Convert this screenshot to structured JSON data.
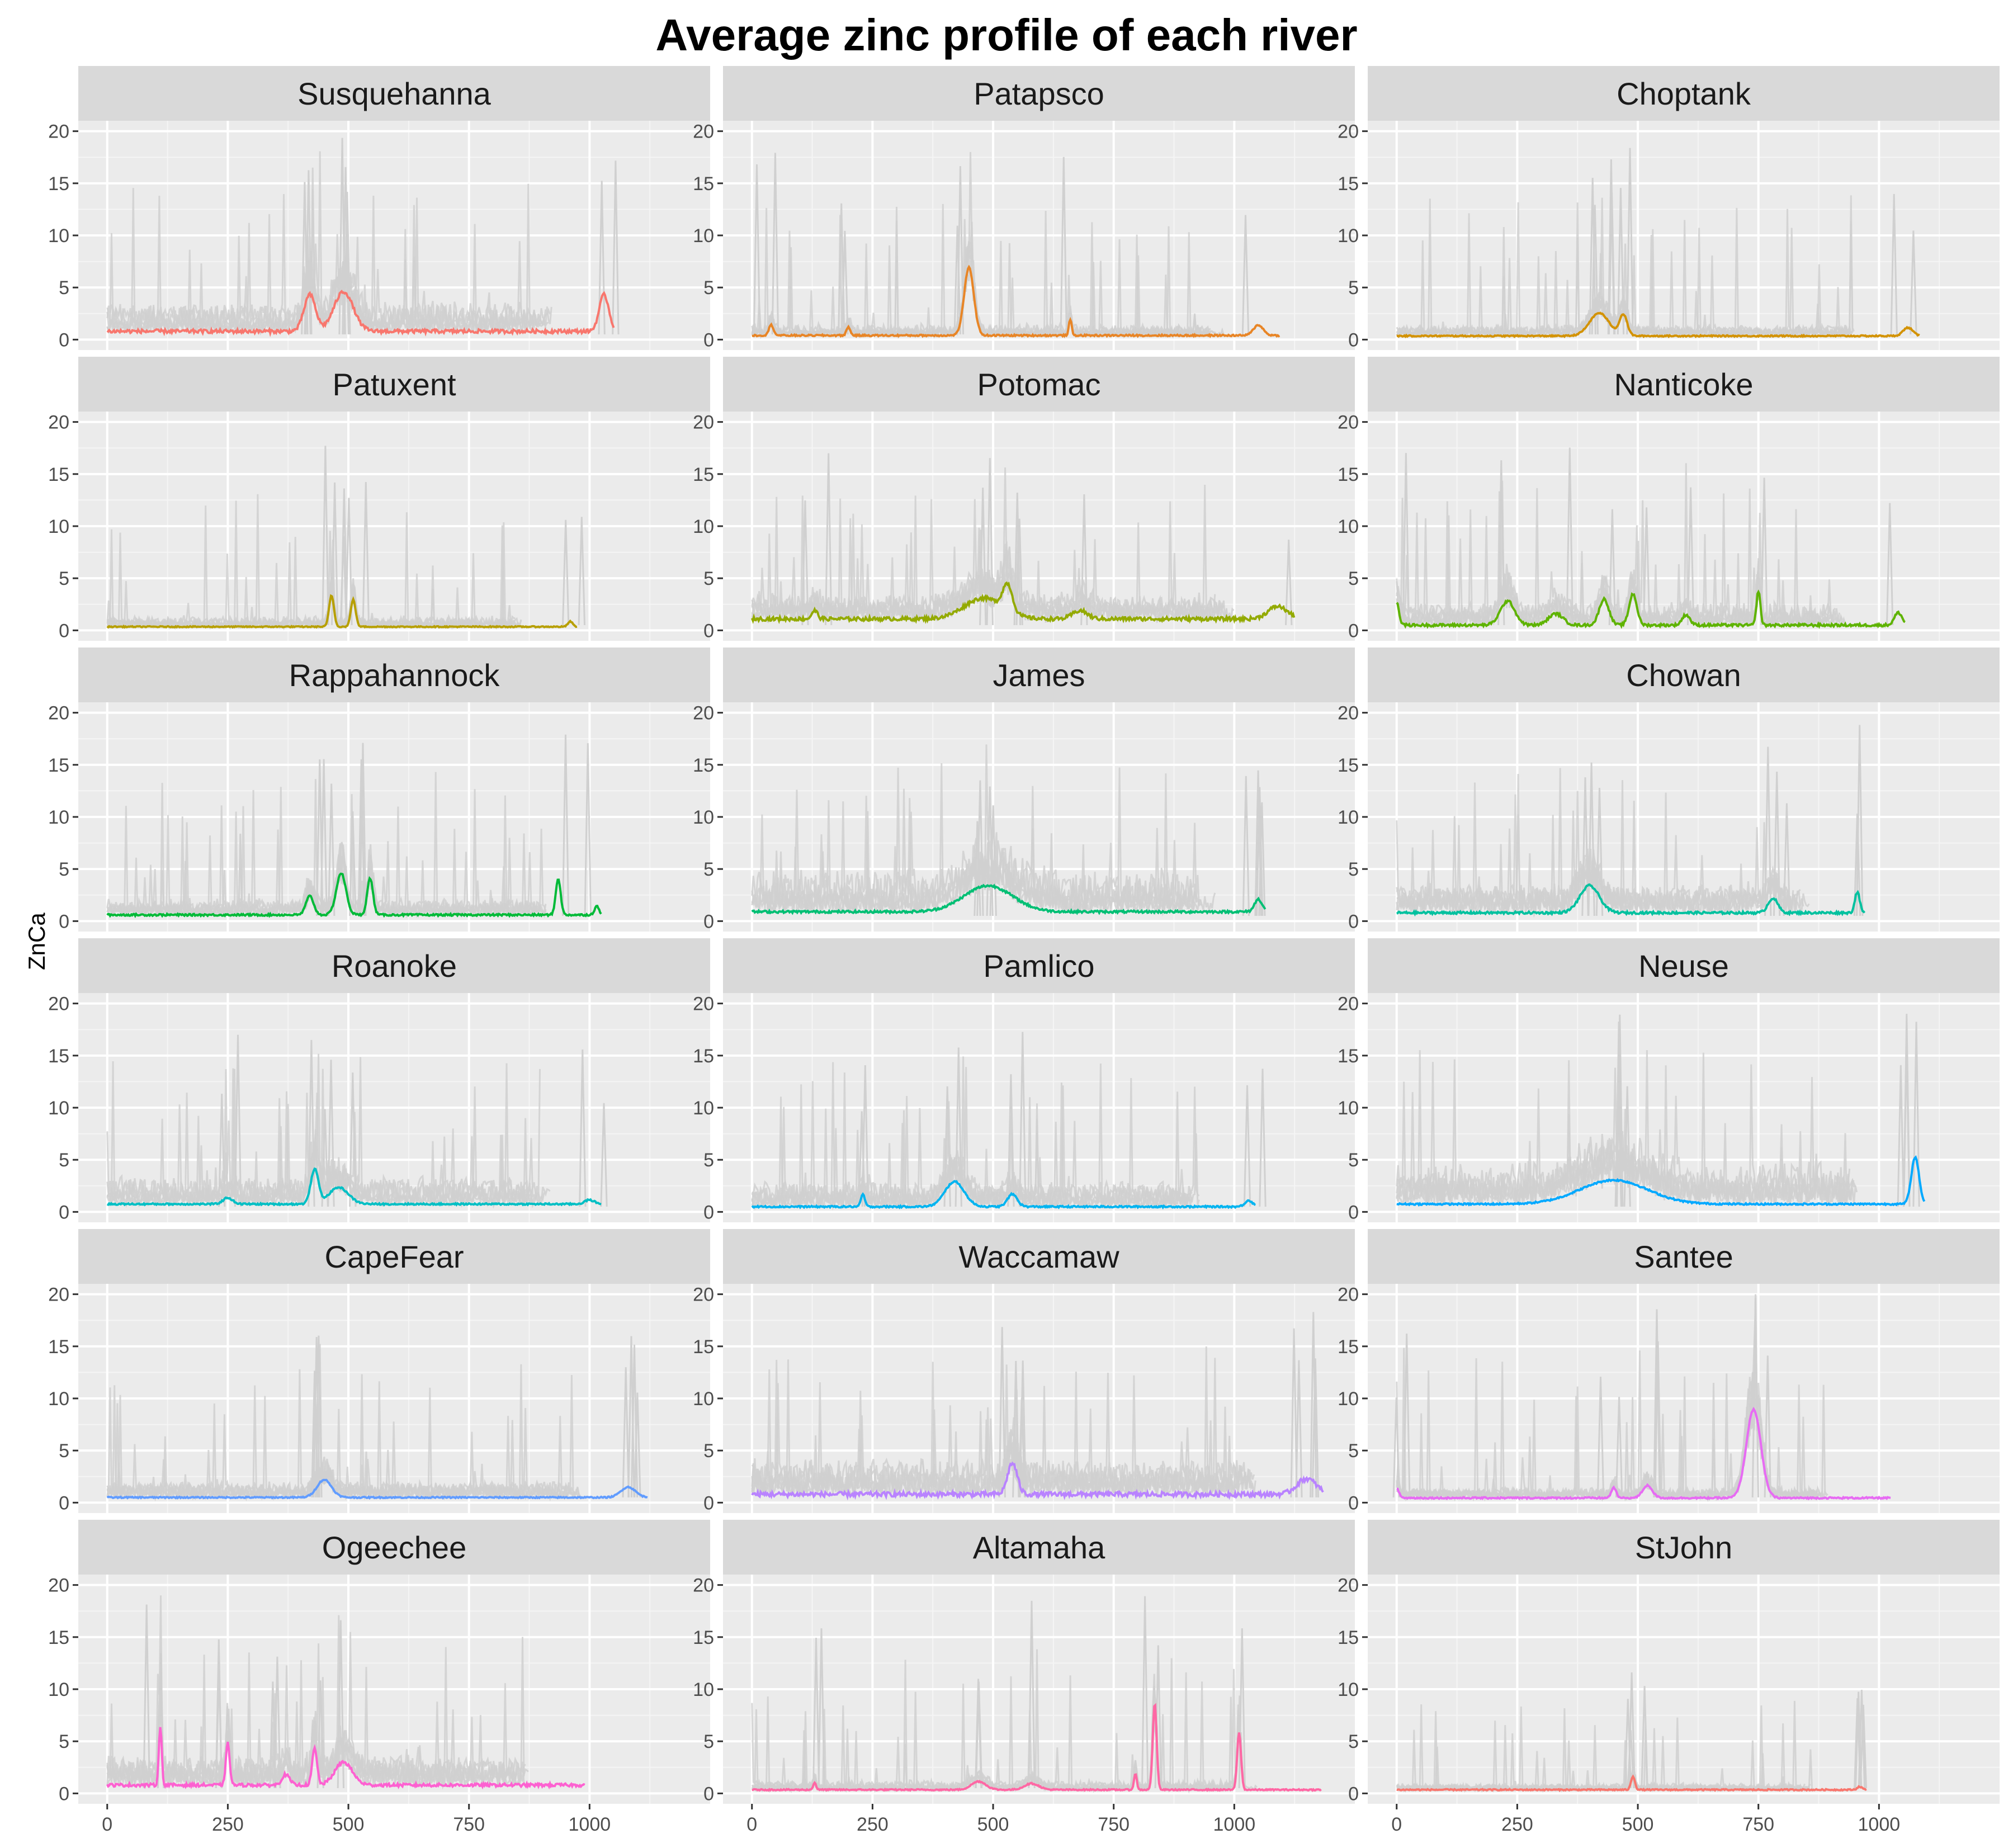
{
  "chart_data": {
    "type": "line",
    "title": "Average zinc profile of each river",
    "ylabel": "ZnCa",
    "xlabel": "",
    "xlim": [
      -60,
      1250
    ],
    "ylim": [
      -1,
      21
    ],
    "x_ticks": [
      0,
      250,
      500,
      750,
      1000
    ],
    "y_ticks": [
      0,
      5,
      10,
      15,
      20
    ],
    "grid": true,
    "legend": "none",
    "background_line_color": "#d0d0d0",
    "panels": [
      {
        "name": "Susquehanna",
        "color": "#F8766D",
        "xmax": 1050,
        "baseline": 0.8,
        "noise": 0.35,
        "bgnoise": 1.6,
        "bgmax": 20,
        "peaks": [
          [
            420,
            3.5,
            12
          ],
          [
            490,
            3.8,
            20
          ],
          [
            1030,
            3.5,
            10
          ]
        ]
      },
      {
        "name": "Patapsco",
        "color": "#E88526",
        "xmax": 1095,
        "baseline": 0.4,
        "noise": 0.15,
        "bgnoise": 0.6,
        "bgmax": 18,
        "peaks": [
          [
            40,
            1.0,
            5
          ],
          [
            200,
            0.8,
            4
          ],
          [
            450,
            6.5,
            10
          ],
          [
            660,
            1.5,
            3
          ],
          [
            1050,
            1.0,
            10
          ]
        ]
      },
      {
        "name": "Choptank",
        "color": "#D39200",
        "xmax": 1085,
        "baseline": 0.35,
        "noise": 0.12,
        "bgnoise": 0.6,
        "bgmax": 19,
        "peaks": [
          [
            420,
            2.2,
            20
          ],
          [
            470,
            2.0,
            8
          ],
          [
            1060,
            0.8,
            10
          ]
        ]
      },
      {
        "name": "Patuxent",
        "color": "#B79F00",
        "xmax": 975,
        "baseline": 0.35,
        "noise": 0.1,
        "bgnoise": 0.6,
        "bgmax": 18,
        "peaks": [
          [
            465,
            3.0,
            5
          ],
          [
            510,
            2.6,
            5
          ],
          [
            960,
            0.5,
            5
          ]
        ]
      },
      {
        "name": "Potomac",
        "color": "#93AA00",
        "xmax": 1125,
        "baseline": 1.1,
        "noise": 0.35,
        "bgnoise": 1.4,
        "bgmax": 17,
        "peaks": [
          [
            130,
            0.8,
            6
          ],
          [
            480,
            2.0,
            40
          ],
          [
            530,
            2.5,
            10
          ],
          [
            680,
            0.8,
            15
          ],
          [
            1090,
            1.2,
            20
          ]
        ]
      },
      {
        "name": "Nanticoke",
        "color": "#5EB300",
        "xmax": 1055,
        "baseline": 0.5,
        "noise": 0.25,
        "bgnoise": 1.2,
        "bgmax": 20,
        "peaks": [
          [
            0,
            2.2,
            5
          ],
          [
            230,
            2.3,
            15
          ],
          [
            330,
            1.1,
            15
          ],
          [
            430,
            2.5,
            10
          ],
          [
            490,
            3.0,
            8
          ],
          [
            600,
            1.0,
            8
          ],
          [
            750,
            3.3,
            4
          ],
          [
            1040,
            1.2,
            8
          ]
        ]
      },
      {
        "name": "Rappahannock",
        "color": "#00BA38",
        "xmax": 1025,
        "baseline": 0.6,
        "noise": 0.18,
        "bgnoise": 0.9,
        "bgmax": 19,
        "peaks": [
          [
            420,
            1.8,
            8
          ],
          [
            485,
            4.0,
            10
          ],
          [
            545,
            3.5,
            6
          ],
          [
            935,
            3.5,
            5
          ],
          [
            1015,
            0.8,
            5
          ]
        ]
      },
      {
        "name": "James",
        "color": "#00BF74",
        "xmax": 1065,
        "baseline": 0.9,
        "noise": 0.22,
        "bgnoise": 2.2,
        "bgmax": 19,
        "peaks": [
          [
            490,
            2.5,
            50
          ],
          [
            1050,
            1.2,
            8
          ]
        ]
      },
      {
        "name": "Chowan",
        "color": "#00C19F",
        "xmax": 970,
        "baseline": 0.8,
        "noise": 0.22,
        "bgnoise": 1.6,
        "bgmax": 19,
        "peaks": [
          [
            400,
            2.6,
            20
          ],
          [
            780,
            1.4,
            10
          ],
          [
            955,
            2.0,
            5
          ]
        ]
      },
      {
        "name": "Roanoke",
        "color": "#00BFC4",
        "xmax": 1025,
        "baseline": 0.75,
        "noise": 0.15,
        "bgnoise": 1.5,
        "bgmax": 19,
        "peaks": [
          [
            250,
            0.6,
            10
          ],
          [
            430,
            3.3,
            8
          ],
          [
            480,
            1.6,
            20
          ],
          [
            1000,
            0.4,
            10
          ]
        ]
      },
      {
        "name": "Pamlico",
        "color": "#00B4F0",
        "xmax": 1045,
        "baseline": 0.5,
        "noise": 0.15,
        "bgnoise": 1.3,
        "bgmax": 19,
        "peaks": [
          [
            230,
            1.2,
            4
          ],
          [
            420,
            2.4,
            20
          ],
          [
            540,
            1.2,
            10
          ],
          [
            1030,
            0.6,
            8
          ]
        ]
      },
      {
        "name": "Neuse",
        "color": "#00A9FF",
        "xmax": 1095,
        "baseline": 0.75,
        "noise": 0.15,
        "bgnoise": 2.2,
        "bgmax": 20,
        "peaks": [
          [
            450,
            2.3,
            70
          ],
          [
            1075,
            4.5,
            8
          ]
        ]
      },
      {
        "name": "CapeFear",
        "color": "#619CFF",
        "xmax": 1120,
        "baseline": 0.5,
        "noise": 0.12,
        "bgnoise": 0.8,
        "bgmax": 19,
        "peaks": [
          [
            450,
            1.7,
            15
          ],
          [
            1080,
            1.0,
            15
          ]
        ]
      },
      {
        "name": "Waccamaw",
        "color": "#B983FF",
        "xmax": 1185,
        "baseline": 0.8,
        "noise": 0.45,
        "bgnoise": 1.8,
        "bgmax": 19,
        "peaks": [
          [
            540,
            3.0,
            10
          ],
          [
            1150,
            1.5,
            20
          ]
        ]
      },
      {
        "name": "Santee",
        "color": "#E76BF3",
        "xmax": 1025,
        "baseline": 0.45,
        "noise": 0.15,
        "bgnoise": 0.6,
        "bgmax": 20,
        "peaks": [
          [
            0,
            0.9,
            5
          ],
          [
            450,
            1.0,
            5
          ],
          [
            520,
            1.2,
            10
          ],
          [
            740,
            8.5,
            15
          ]
        ]
      },
      {
        "name": "Ogeechee",
        "color": "#FD61D1",
        "xmax": 990,
        "baseline": 0.8,
        "noise": 0.3,
        "bgnoise": 1.5,
        "bgmax": 19,
        "peaks": [
          [
            110,
            5.7,
            3
          ],
          [
            250,
            4.0,
            4
          ],
          [
            370,
            1.0,
            8
          ],
          [
            430,
            3.5,
            5
          ],
          [
            490,
            2.2,
            18
          ]
        ]
      },
      {
        "name": "Altamaha",
        "color": "#FF67A4",
        "xmax": 1180,
        "baseline": 0.35,
        "noise": 0.12,
        "bgnoise": 0.5,
        "bgmax": 19,
        "peaks": [
          [
            130,
            0.7,
            3
          ],
          [
            470,
            0.8,
            15
          ],
          [
            580,
            0.6,
            15
          ],
          [
            795,
            1.5,
            3
          ],
          [
            835,
            8.3,
            4
          ],
          [
            1010,
            5.5,
            4
          ]
        ]
      },
      {
        "name": "StJohn",
        "color": "#F8766D",
        "xmax": 975,
        "baseline": 0.35,
        "noise": 0.12,
        "bgnoise": 0.4,
        "bgmax": 12,
        "peaks": [
          [
            490,
            1.3,
            4
          ],
          [
            960,
            0.3,
            5
          ]
        ]
      }
    ]
  }
}
